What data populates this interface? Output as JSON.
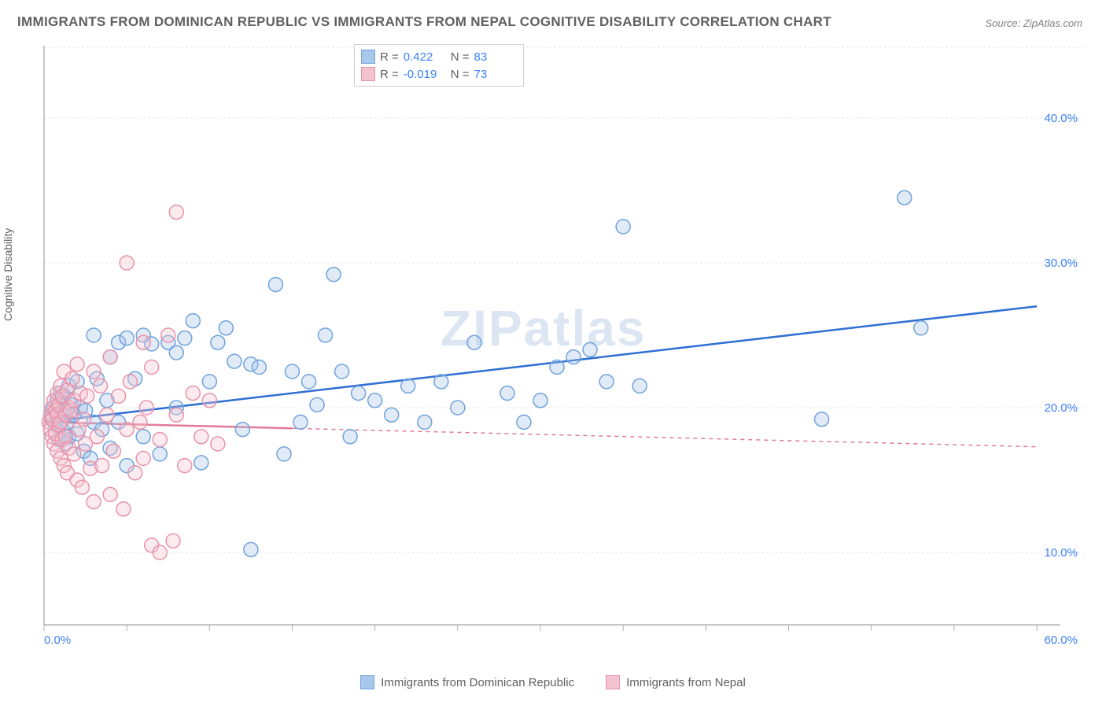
{
  "title": "IMMIGRANTS FROM DOMINICAN REPUBLIC VS IMMIGRANTS FROM NEPAL COGNITIVE DISABILITY CORRELATION CHART",
  "source": "Source: ZipAtlas.com",
  "y_label": "Cognitive Disability",
  "watermark": "ZIPatlas",
  "chart": {
    "type": "scatter-with-regression",
    "background_color": "#ffffff",
    "grid_color": "#e5e5e5",
    "axis_color": "#909090",
    "tick_color": "#b0b0b0",
    "tick_label_color": "#3b82f6",
    "x_domain": [
      0,
      60
    ],
    "y_domain": [
      5,
      45
    ],
    "x_ticks": [
      0,
      5,
      10,
      15,
      20,
      25,
      30,
      35,
      40,
      45,
      50,
      55,
      60
    ],
    "x_tick_labels": {
      "0": "0.0%",
      "60": "60.0%"
    },
    "y_ticks": [
      10,
      20,
      30,
      40
    ],
    "y_tick_labels": {
      "10": "10.0%",
      "20": "20.0%",
      "30": "30.0%",
      "40": "40.0%"
    },
    "marker_radius": 9,
    "marker_stroke_width": 1.5,
    "marker_fill_opacity": 0.35,
    "line_width": 2.5
  },
  "series": [
    {
      "name": "Immigrants from Dominican Republic",
      "color_fill": "#a8c7ea",
      "color_stroke": "#6fa3dc",
      "line_color": "#2f6fd4",
      "R": "0.422",
      "N": "83",
      "regression": {
        "x1": 0,
        "y1": 19.0,
        "x2": 60,
        "y2": 27.0,
        "dash": false,
        "extend_x": 60
      },
      "solid_until_x": 60,
      "points": [
        [
          0.5,
          19.5
        ],
        [
          0.6,
          20.0
        ],
        [
          0.7,
          18.8
        ],
        [
          0.8,
          19.2
        ],
        [
          0.8,
          20.5
        ],
        [
          0.9,
          17.8
        ],
        [
          1.0,
          19.0
        ],
        [
          1.0,
          21.0
        ],
        [
          1.1,
          18.5
        ],
        [
          1.2,
          19.8
        ],
        [
          1.2,
          20.8
        ],
        [
          1.3,
          17.5
        ],
        [
          1.4,
          19.0
        ],
        [
          1.5,
          21.5
        ],
        [
          1.5,
          18.0
        ],
        [
          1.6,
          20.2
        ],
        [
          1.8,
          19.5
        ],
        [
          2.0,
          21.8
        ],
        [
          2.0,
          18.2
        ],
        [
          2.2,
          20.0
        ],
        [
          2.4,
          17.0
        ],
        [
          2.5,
          19.8
        ],
        [
          2.8,
          16.5
        ],
        [
          3.0,
          25.0
        ],
        [
          3.0,
          19.0
        ],
        [
          3.2,
          22.0
        ],
        [
          3.5,
          18.5
        ],
        [
          3.8,
          20.5
        ],
        [
          4.0,
          23.5
        ],
        [
          4.0,
          17.2
        ],
        [
          4.5,
          24.5
        ],
        [
          4.5,
          19.0
        ],
        [
          5.0,
          16.0
        ],
        [
          5.0,
          24.8
        ],
        [
          5.5,
          22.0
        ],
        [
          6.0,
          25.0
        ],
        [
          6.0,
          18.0
        ],
        [
          6.5,
          24.4
        ],
        [
          7.0,
          16.8
        ],
        [
          7.5,
          24.5
        ],
        [
          8.0,
          23.8
        ],
        [
          8.0,
          20.0
        ],
        [
          8.5,
          24.8
        ],
        [
          9.0,
          26.0
        ],
        [
          9.5,
          16.2
        ],
        [
          10.0,
          21.8
        ],
        [
          10.5,
          24.5
        ],
        [
          11.0,
          25.5
        ],
        [
          11.5,
          23.2
        ],
        [
          12.0,
          18.5
        ],
        [
          12.5,
          23.0
        ],
        [
          12.5,
          10.2
        ],
        [
          13.0,
          22.8
        ],
        [
          14.0,
          28.5
        ],
        [
          14.5,
          16.8
        ],
        [
          15.0,
          22.5
        ],
        [
          15.5,
          19.0
        ],
        [
          16.0,
          21.8
        ],
        [
          16.5,
          20.2
        ],
        [
          17.0,
          25.0
        ],
        [
          17.5,
          29.2
        ],
        [
          18.0,
          22.5
        ],
        [
          18.5,
          18.0
        ],
        [
          19.0,
          21.0
        ],
        [
          20.0,
          20.5
        ],
        [
          21.0,
          19.5
        ],
        [
          22.0,
          21.5
        ],
        [
          23.0,
          19.0
        ],
        [
          24.0,
          21.8
        ],
        [
          25.0,
          20.0
        ],
        [
          26.0,
          24.5
        ],
        [
          28.0,
          21.0
        ],
        [
          29.0,
          19.0
        ],
        [
          30.0,
          20.5
        ],
        [
          31.0,
          22.8
        ],
        [
          32.0,
          23.5
        ],
        [
          33.0,
          24.0
        ],
        [
          34.0,
          21.8
        ],
        [
          35.0,
          32.5
        ],
        [
          36.0,
          21.5
        ],
        [
          47.0,
          19.2
        ],
        [
          52.0,
          34.5
        ],
        [
          53.0,
          25.5
        ]
      ]
    },
    {
      "name": "Immigrants from Nepal",
      "color_fill": "#f3c3cf",
      "color_stroke": "#e893ab",
      "line_color": "#e17b97",
      "R": "-0.019",
      "N": "73",
      "regression": {
        "x1": 0,
        "y1": 19.0,
        "x2": 60,
        "y2": 17.3,
        "dash": true,
        "extend_x": 60
      },
      "solid_until_x": 15,
      "points": [
        [
          0.3,
          19.0
        ],
        [
          0.4,
          19.5
        ],
        [
          0.4,
          18.5
        ],
        [
          0.5,
          20.0
        ],
        [
          0.5,
          18.0
        ],
        [
          0.5,
          19.2
        ],
        [
          0.6,
          17.5
        ],
        [
          0.6,
          20.5
        ],
        [
          0.7,
          19.8
        ],
        [
          0.7,
          18.2
        ],
        [
          0.8,
          21.0
        ],
        [
          0.8,
          17.0
        ],
        [
          0.8,
          19.5
        ],
        [
          0.9,
          20.2
        ],
        [
          0.9,
          18.8
        ],
        [
          1.0,
          16.5
        ],
        [
          1.0,
          21.5
        ],
        [
          1.0,
          19.0
        ],
        [
          1.1,
          17.8
        ],
        [
          1.1,
          20.8
        ],
        [
          1.2,
          22.5
        ],
        [
          1.2,
          16.0
        ],
        [
          1.3,
          19.5
        ],
        [
          1.3,
          18.0
        ],
        [
          1.4,
          21.2
        ],
        [
          1.4,
          15.5
        ],
        [
          1.5,
          20.0
        ],
        [
          1.5,
          17.2
        ],
        [
          1.6,
          19.8
        ],
        [
          1.7,
          22.0
        ],
        [
          1.8,
          16.8
        ],
        [
          1.8,
          20.5
        ],
        [
          2.0,
          23.0
        ],
        [
          2.0,
          15.0
        ],
        [
          2.1,
          18.5
        ],
        [
          2.2,
          21.0
        ],
        [
          2.3,
          14.5
        ],
        [
          2.4,
          19.2
        ],
        [
          2.5,
          17.5
        ],
        [
          2.6,
          20.8
        ],
        [
          2.8,
          15.8
        ],
        [
          3.0,
          22.5
        ],
        [
          3.0,
          13.5
        ],
        [
          3.2,
          18.0
        ],
        [
          3.4,
          21.5
        ],
        [
          3.5,
          16.0
        ],
        [
          3.8,
          19.5
        ],
        [
          4.0,
          14.0
        ],
        [
          4.0,
          23.5
        ],
        [
          4.2,
          17.0
        ],
        [
          4.5,
          20.8
        ],
        [
          4.8,
          13.0
        ],
        [
          5.0,
          30.0
        ],
        [
          5.0,
          18.5
        ],
        [
          5.2,
          21.8
        ],
        [
          5.5,
          15.5
        ],
        [
          5.8,
          19.0
        ],
        [
          6.0,
          24.5
        ],
        [
          6.0,
          16.5
        ],
        [
          6.2,
          20.0
        ],
        [
          6.5,
          10.5
        ],
        [
          6.5,
          22.8
        ],
        [
          7.0,
          17.8
        ],
        [
          7.0,
          10.0
        ],
        [
          7.5,
          25.0
        ],
        [
          7.8,
          10.8
        ],
        [
          8.0,
          33.5
        ],
        [
          8.0,
          19.5
        ],
        [
          8.5,
          16.0
        ],
        [
          9.0,
          21.0
        ],
        [
          9.5,
          18.0
        ],
        [
          10.0,
          20.5
        ],
        [
          10.5,
          17.5
        ]
      ]
    }
  ],
  "legend_bottom": [
    {
      "label": "Immigrants from Dominican Republic",
      "fill": "#a8c7ea",
      "stroke": "#6fa3dc"
    },
    {
      "label": "Immigrants from Nepal",
      "fill": "#f3c3cf",
      "stroke": "#e893ab"
    }
  ]
}
